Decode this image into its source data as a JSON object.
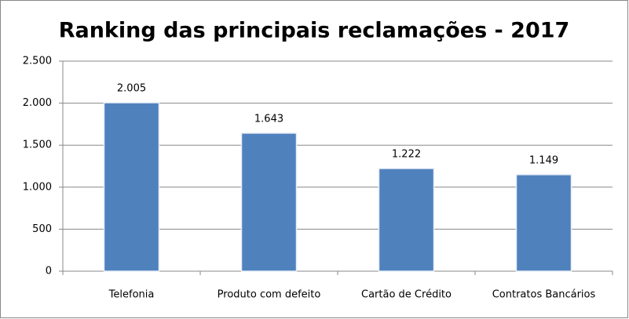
{
  "chart_data": {
    "type": "bar",
    "title": "Ranking das principais reclamações - 2017",
    "categories": [
      "Telefonia",
      "Produto com defeito",
      "Cartão de Crédito",
      "Contratos Bancários"
    ],
    "values": [
      2005,
      1643,
      1222,
      1149
    ],
    "value_labels": [
      "2.005",
      "1.643",
      "1.222",
      "1.149"
    ],
    "color": "#4f81bd",
    "ylim": [
      0,
      2500
    ],
    "yticks": [
      0,
      500,
      {
        "value": 1000,
        "label": "1.000"
      },
      {
        "value": 1500,
        "label": "1.500"
      },
      {
        "value": 2000,
        "label": "2.000"
      },
      {
        "value": 2500,
        "label": "2.500"
      }
    ],
    "grid": true
  }
}
